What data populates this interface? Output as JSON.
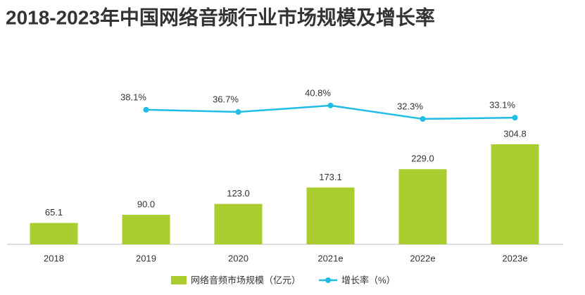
{
  "chart_data": {
    "type": "bar",
    "title": "2018-2023年中国网络音频行业市场规模及增长率",
    "categories": [
      "2018",
      "2019",
      "2020",
      "2021e",
      "2022e",
      "2023e"
    ],
    "series": [
      {
        "name": "网络音频市场规模（亿元）",
        "type": "bar",
        "color": "#a9cd2f",
        "values": [
          65.1,
          90.0,
          123.0,
          173.1,
          229.0,
          304.8
        ],
        "value_labels": [
          "65.1",
          "90.0",
          "123.0",
          "173.1",
          "229.0",
          "304.8"
        ]
      },
      {
        "name": "增长率（%）",
        "type": "line",
        "axis": "y2",
        "color": "#1fbde6",
        "values": [
          null,
          38.1,
          36.7,
          40.8,
          32.3,
          33.1
        ],
        "value_labels": [
          null,
          "38.1%",
          "36.7%",
          "40.8%",
          "32.3%",
          "33.1%"
        ]
      }
    ],
    "ylim": [
      0,
      530
    ],
    "y2lim": [
      -47,
      63
    ]
  }
}
